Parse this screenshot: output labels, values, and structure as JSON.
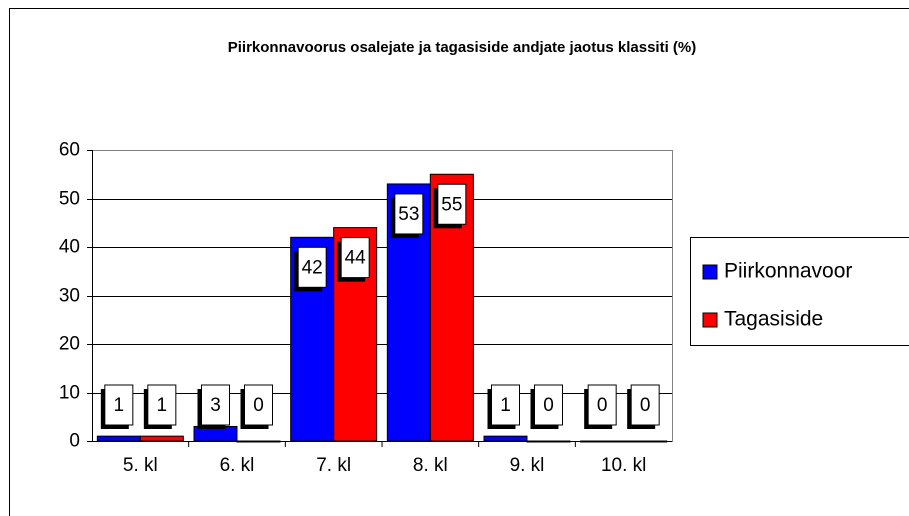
{
  "chart_data": {
    "type": "bar",
    "title": "Piirkonnavoorus osalejate ja tagasiside andjate jaotus klassiti (%)",
    "categories": [
      "5. kl",
      "6. kl",
      "7. kl",
      "8. kl",
      "9. kl",
      "10. kl"
    ],
    "series": [
      {
        "name": "Piirkonnavoor",
        "color": "#0000ff",
        "values": [
          1,
          3,
          42,
          53,
          1,
          0
        ]
      },
      {
        "name": "Tagasiside",
        "color": "#ff0000",
        "values": [
          1,
          0,
          44,
          55,
          0,
          0
        ]
      }
    ],
    "ylim": [
      0,
      60
    ],
    "yticks": [
      0,
      10,
      20,
      30,
      40,
      50,
      60
    ],
    "grid": true,
    "legend": "right"
  }
}
